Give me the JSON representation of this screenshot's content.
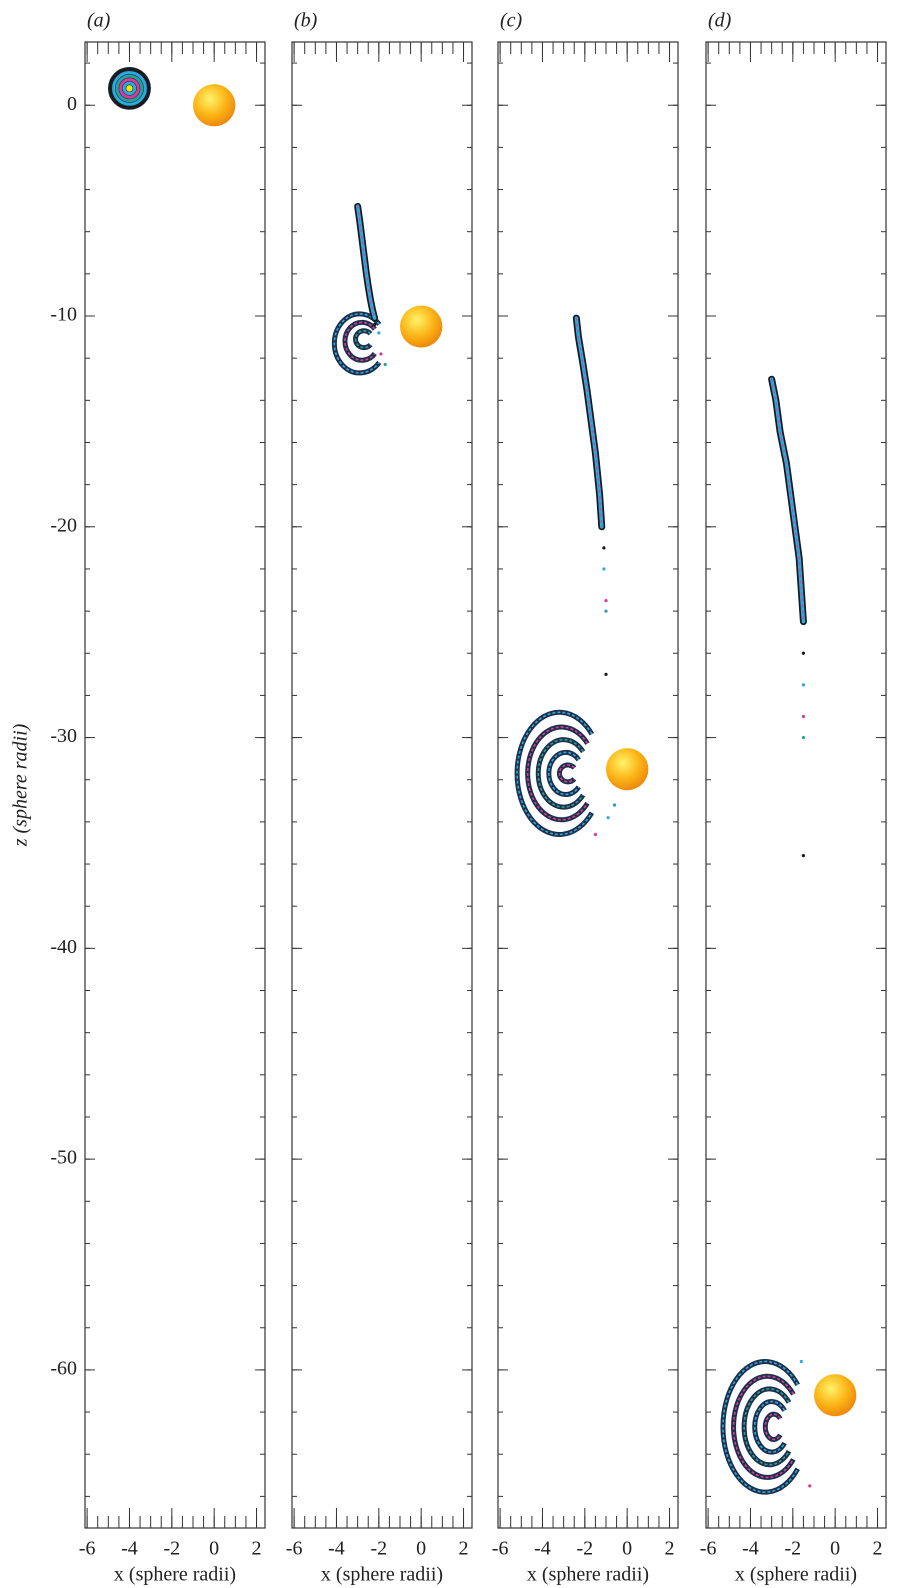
{
  "chart_data": [
    {
      "type": "scatter",
      "label": "(a)",
      "xlabel": "x (sphere radii)",
      "ylabel": "z (sphere radii)",
      "xlim": [
        -6.1,
        2.4
      ],
      "ylim": [
        -67.5,
        3
      ],
      "xticks": [
        -6,
        -4,
        -2,
        0,
        2
      ],
      "yticks": [
        0,
        -10,
        -20,
        -30,
        -40,
        -50,
        -60
      ],
      "x_minor_ticks": [
        -6,
        -5.5,
        -5,
        -4.5,
        -4,
        -3.5,
        -3,
        -2.5,
        -2,
        -1.5,
        -1,
        -0.5,
        0,
        0.5,
        1,
        1.5,
        2
      ],
      "z_minor_ticks": [
        -66,
        -64,
        -62,
        -60,
        -58,
        -56,
        -54,
        -52,
        -50,
        -48,
        -46,
        -44,
        -42,
        -40,
        -38,
        -36,
        -34,
        -32,
        -30,
        -28,
        -26,
        -24,
        -22,
        -20,
        -18,
        -16,
        -14,
        -12,
        -10,
        -8,
        -6,
        -4,
        -2,
        0,
        2
      ],
      "dot_colors": [
        "#1a1a1a",
        "#29abe2",
        "#d63c9c",
        "#2aa198"
      ],
      "sphere": {
        "x": 0,
        "z": 0,
        "r": 1
      },
      "blob": {
        "x": -4,
        "z": 0.8,
        "r": 1
      }
    },
    {
      "type": "scatter",
      "label": "(b)",
      "xlabel": "x (sphere radii)",
      "xlim": [
        -6.1,
        2.4
      ],
      "ylim": [
        -67.5,
        3
      ],
      "xticks": [
        -6,
        -4,
        -2,
        0,
        2
      ],
      "sphere": {
        "x": 0,
        "z": -10.5,
        "r": 1
      },
      "tail": {
        "x": [
          -3.0,
          -2.9,
          -2.8,
          -2.7,
          -2.6,
          -2.5,
          -2.4,
          -2.3,
          -2.2
        ],
        "z": [
          -4.8,
          -5.5,
          -6.3,
          -7.1,
          -7.9,
          -8.6,
          -9.2,
          -9.7,
          -10.1
        ]
      },
      "arcs": [
        {
          "cx": -2.9,
          "cz": -11.3,
          "rx": 1.2,
          "rz": 1.4
        },
        {
          "cx": -2.8,
          "cz": -11.2,
          "rx": 0.8,
          "rz": 0.9
        },
        {
          "cx": -2.7,
          "cz": -11.1,
          "rx": 0.4,
          "rz": 0.4
        }
      ],
      "dots": {
        "x": [
          -2.2,
          -2.0,
          -1.9,
          -1.7
        ],
        "z": [
          -10.4,
          -10.8,
          -11.8,
          -12.3
        ]
      }
    },
    {
      "type": "scatter",
      "label": "(c)",
      "xlabel": "x (sphere radii)",
      "xlim": [
        -6.1,
        2.4
      ],
      "ylim": [
        -67.5,
        3
      ],
      "xticks": [
        -6,
        -4,
        -2,
        0,
        2
      ],
      "sphere": {
        "x": 0,
        "z": -31.5,
        "r": 1
      },
      "tail": {
        "x": [
          -2.4,
          -2.3,
          -2.1,
          -1.9,
          -1.7,
          -1.5,
          -1.3,
          -1.2
        ],
        "z": [
          -10.1,
          -11.0,
          -12.2,
          -13.5,
          -15.0,
          -16.5,
          -18.5,
          -20.0
        ]
      },
      "arcs": [
        {
          "cx": -3.2,
          "cz": -31.7,
          "rx": 2.0,
          "rz": 2.9
        },
        {
          "cx": -3.1,
          "cz": -31.7,
          "rx": 1.6,
          "rz": 2.2
        },
        {
          "cx": -3.0,
          "cz": -31.7,
          "rx": 1.2,
          "rz": 1.6
        },
        {
          "cx": -2.9,
          "cz": -31.7,
          "rx": 0.8,
          "rz": 1.0
        },
        {
          "cx": -2.8,
          "cz": -31.7,
          "rx": 0.4,
          "rz": 0.4
        }
      ],
      "dots": {
        "x": [
          -1.1,
          -1.1,
          -1.0,
          -1.0,
          -1.0,
          -0.9,
          -1.5,
          -0.6
        ],
        "z": [
          -21.0,
          -22.0,
          -23.5,
          -24.0,
          -27.0,
          -33.8,
          -34.6,
          -33.2
        ]
      }
    },
    {
      "type": "scatter",
      "label": "(d)",
      "xlabel": "x (sphere radii)",
      "xlim": [
        -6.1,
        2.4
      ],
      "ylim": [
        -67.5,
        3
      ],
      "xticks": [
        -6,
        -4,
        -2,
        0,
        2
      ],
      "sphere": {
        "x": 0,
        "z": -61.2,
        "r": 1
      },
      "tail": {
        "x": [
          -3.0,
          -2.8,
          -2.6,
          -2.3,
          -2.1,
          -1.9,
          -1.7,
          -1.6,
          -1.5
        ],
        "z": [
          -13.0,
          -14.0,
          -15.5,
          -17.0,
          -18.5,
          -20.0,
          -21.5,
          -23.0,
          -24.5
        ]
      },
      "arcs": [
        {
          "cx": -3.3,
          "cz": -62.7,
          "rx": 2.0,
          "rz": 3.1
        },
        {
          "cx": -3.2,
          "cz": -62.7,
          "rx": 1.6,
          "rz": 2.4
        },
        {
          "cx": -3.1,
          "cz": -62.7,
          "rx": 1.2,
          "rz": 1.8
        },
        {
          "cx": -3.0,
          "cz": -62.7,
          "rx": 0.8,
          "rz": 1.2
        },
        {
          "cx": -2.9,
          "cz": -62.7,
          "rx": 0.4,
          "rz": 0.6
        }
      ],
      "dots": {
        "x": [
          -1.5,
          -1.5,
          -1.5,
          -1.5,
          -1.5,
          -1.6,
          -1.2
        ],
        "z": [
          -26.0,
          -27.5,
          -29.0,
          -30.0,
          -35.6,
          -59.6,
          -65.5
        ]
      }
    }
  ]
}
